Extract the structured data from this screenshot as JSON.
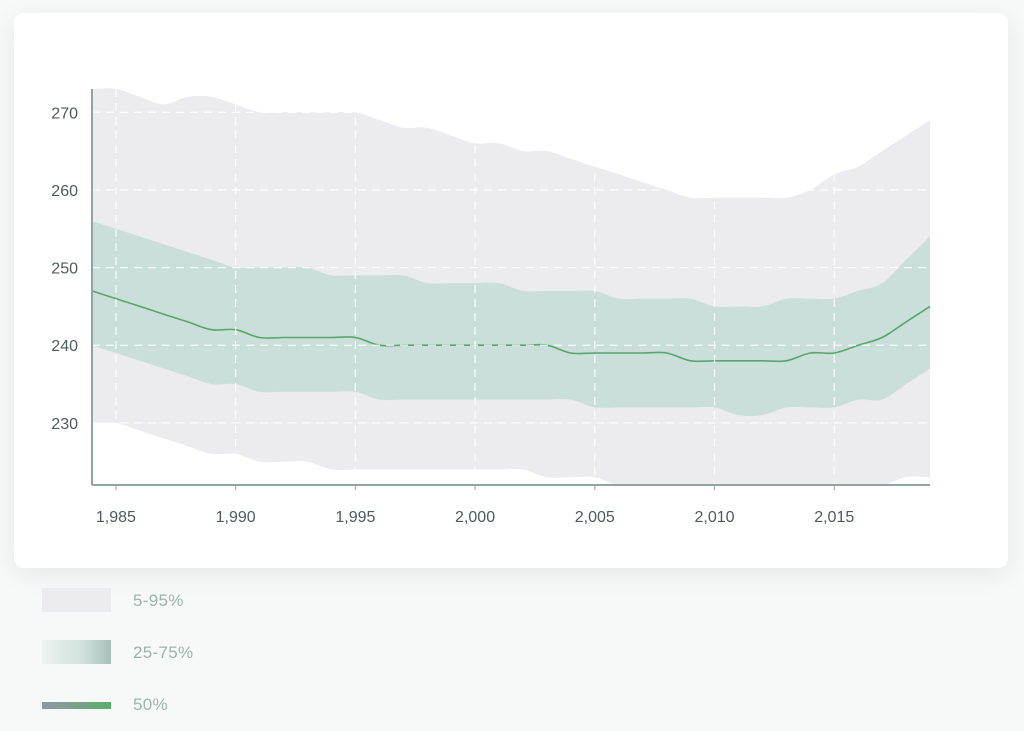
{
  "chart_data": {
    "type": "area",
    "title": "",
    "xlabel": "",
    "ylabel": "",
    "xlim": [
      1984,
      2019
    ],
    "ylim": [
      222,
      273
    ],
    "x_ticks": [
      1985,
      1990,
      1995,
      2000,
      2005,
      2010,
      2015
    ],
    "x_tick_labels": [
      "1,985",
      "1,990",
      "1,995",
      "2,000",
      "2,005",
      "2,010",
      "2,015"
    ],
    "y_ticks": [
      230,
      240,
      250,
      260,
      270
    ],
    "y_tick_labels": [
      "230",
      "240",
      "250",
      "260",
      "270"
    ],
    "grid": true,
    "legend_placement": "below",
    "x": [
      1984,
      1985,
      1986,
      1987,
      1988,
      1989,
      1990,
      1991,
      1992,
      1993,
      1994,
      1995,
      1996,
      1997,
      1998,
      1999,
      2000,
      2001,
      2002,
      2003,
      2004,
      2005,
      2006,
      2007,
      2008,
      2009,
      2010,
      2011,
      2012,
      2013,
      2014,
      2015,
      2016,
      2017,
      2018,
      2019
    ],
    "series": [
      {
        "name": "5-95%",
        "kind": "band",
        "color": "#ebebf0",
        "upper": [
          273,
          273,
          272,
          271,
          272,
          272,
          271,
          270,
          270,
          270,
          270,
          270,
          269,
          268,
          268,
          267,
          266,
          266,
          265,
          265,
          264,
          263,
          262,
          261,
          260,
          259,
          259,
          259,
          259,
          259,
          260,
          262,
          263,
          265,
          267,
          269
        ],
        "lower": [
          230,
          230,
          229,
          228,
          227,
          226,
          226,
          225,
          225,
          225,
          224,
          224,
          224,
          224,
          224,
          224,
          224,
          224,
          224,
          223,
          223,
          223,
          222,
          222,
          222,
          222,
          222,
          222,
          222,
          222,
          222,
          222,
          222,
          222,
          223,
          223
        ]
      },
      {
        "name": "25-75%",
        "kind": "band",
        "color": "#cadfda",
        "upper": [
          256,
          255,
          254,
          253,
          252,
          251,
          250,
          250,
          250,
          250,
          249,
          249,
          249,
          249,
          248,
          248,
          248,
          248,
          247,
          247,
          247,
          247,
          246,
          246,
          246,
          246,
          245,
          245,
          245,
          246,
          246,
          246,
          247,
          248,
          251,
          254
        ],
        "lower": [
          240,
          239,
          238,
          237,
          236,
          235,
          235,
          234,
          234,
          234,
          234,
          234,
          233,
          233,
          233,
          233,
          233,
          233,
          233,
          233,
          233,
          232,
          232,
          232,
          232,
          232,
          232,
          231,
          231,
          232,
          232,
          232,
          233,
          233,
          235,
          237
        ]
      },
      {
        "name": "50%",
        "kind": "line",
        "color": "#59a56b",
        "values": [
          247,
          246,
          245,
          244,
          243,
          242,
          242,
          241,
          241,
          241,
          241,
          241,
          240,
          240,
          240,
          240,
          240,
          240,
          240,
          240,
          239,
          239,
          239,
          239,
          239,
          238,
          238,
          238,
          238,
          238,
          239,
          239,
          240,
          241,
          243,
          245
        ]
      }
    ]
  },
  "legend": {
    "items": [
      {
        "label": "5-95%"
      },
      {
        "label": "25-75%"
      },
      {
        "label": "50%"
      }
    ]
  },
  "colors": {
    "axis": "#8fa5a3",
    "tick_label": "#4c5b5c",
    "grid": "#ffffff",
    "card": "#ffffff",
    "legend_text": "#9db4ad"
  }
}
